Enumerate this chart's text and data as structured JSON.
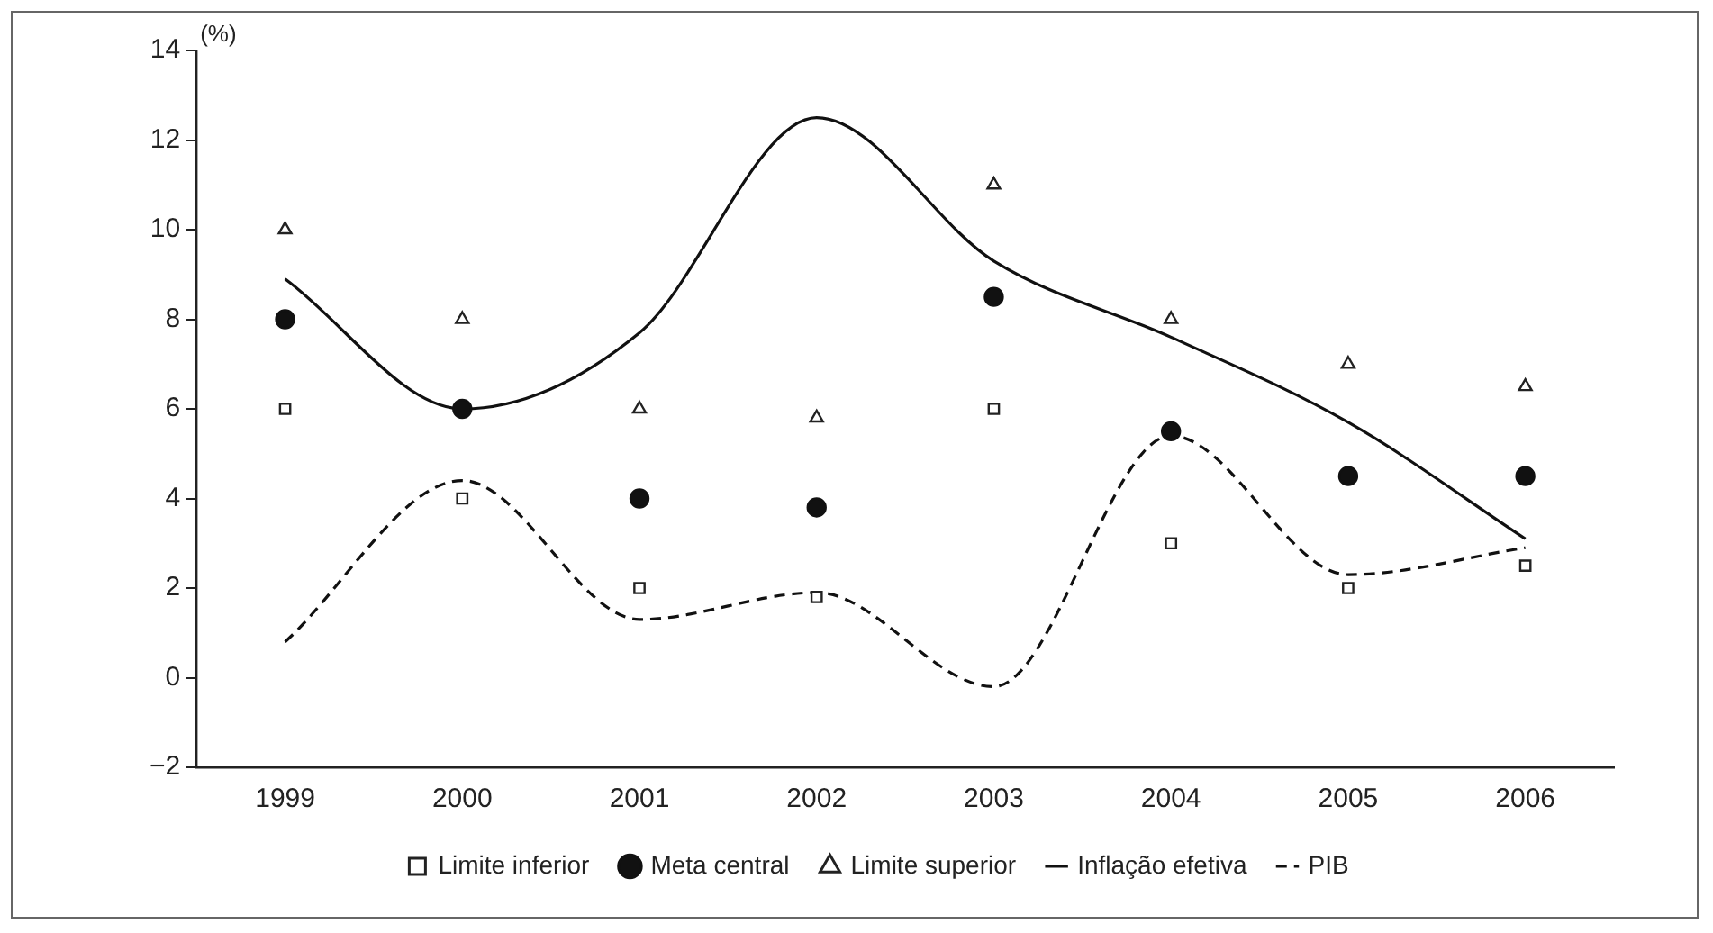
{
  "chart_data": {
    "type": "line",
    "ylabel": "(%)",
    "categories": [
      "1999",
      "2000",
      "2001",
      "2002",
      "2003",
      "2004",
      "2005",
      "2006"
    ],
    "ylim": [
      -2,
      14
    ],
    "yticks": [
      -2,
      0,
      2,
      4,
      6,
      8,
      10,
      12,
      14
    ],
    "grid": false,
    "legend": "bottom",
    "series": [
      {
        "name": "Limite inferior",
        "type": "scatter",
        "marker": "square",
        "color": "#222222",
        "values": [
          6,
          4,
          2,
          1.8,
          6,
          3,
          2,
          2.5
        ]
      },
      {
        "name": "Meta central",
        "type": "scatter",
        "marker": "circle",
        "color": "#111111",
        "values": [
          8,
          6,
          4,
          3.8,
          8.5,
          5.5,
          4.5,
          4.5
        ]
      },
      {
        "name": "Limite superior",
        "type": "scatter",
        "marker": "triangle",
        "color": "#222222",
        "values": [
          10,
          8,
          6,
          5.8,
          11,
          8,
          7,
          6.5
        ]
      },
      {
        "name": "Inflação efetiva",
        "line_style": "solid",
        "color": "#111111",
        "values": [
          8.9,
          6,
          7.7,
          12.5,
          9.3,
          7.6,
          5.7,
          3.1
        ]
      },
      {
        "name": "PIB",
        "line_style": "dashed",
        "color": "#111111",
        "values": [
          0.8,
          4.4,
          1.3,
          1.9,
          -0.2,
          5.4,
          2.3,
          2.9
        ]
      }
    ]
  }
}
